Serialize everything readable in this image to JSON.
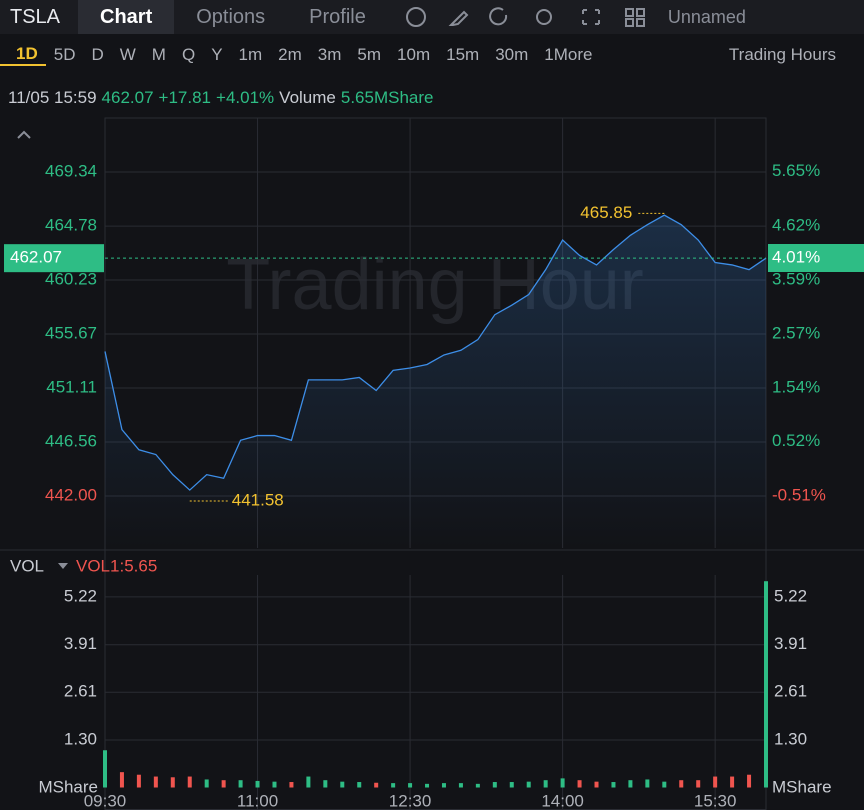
{
  "toolbar": {
    "symbol": "TSLA",
    "tabs": [
      "Chart",
      "Options",
      "Profile"
    ],
    "layout_name": "Unnamed"
  },
  "periods": {
    "items": [
      "1D",
      "5D",
      "D",
      "W",
      "M",
      "Q",
      "Y",
      "1m",
      "2m",
      "3m",
      "5m",
      "10m",
      "15m",
      "30m",
      "1More"
    ],
    "session": "Trading Hours"
  },
  "quote": {
    "time": "11/05 15:59",
    "price": "462.07",
    "change": "+17.81",
    "change_pct": "+4.01%",
    "volume_label": "Volume",
    "volume": "5.65MShare"
  },
  "chart_data": [
    {
      "type": "line",
      "watermark": "Trading Hour",
      "color": "#3d8ee8",
      "up_color": "#2ebd85",
      "down_color": "#f0554f",
      "annotation_color": "#f2c230",
      "categories": [
        "09:30",
        "09:40",
        "09:50",
        "10:00",
        "10:10",
        "10:20",
        "10:30",
        "10:40",
        "10:50",
        "11:00",
        "11:10",
        "11:20",
        "11:30",
        "11:40",
        "11:50",
        "12:00",
        "12:10",
        "12:20",
        "12:30",
        "12:40",
        "12:50",
        "13:00",
        "13:10",
        "13:20",
        "13:30",
        "13:40",
        "13:50",
        "14:00",
        "14:10",
        "14:20",
        "14:30",
        "14:40",
        "14:50",
        "15:00",
        "15:10",
        "15:20",
        "15:30",
        "15:40",
        "15:50",
        "15:59"
      ],
      "values": [
        454.2,
        447.6,
        445.9,
        445.5,
        443.8,
        442.5,
        443.8,
        443.5,
        446.7,
        447.1,
        447.1,
        446.7,
        451.8,
        451.8,
        451.8,
        452.0,
        450.9,
        452.6,
        452.8,
        453.1,
        453.9,
        454.3,
        455.2,
        457.3,
        458.1,
        459.0,
        461.1,
        463.6,
        462.3,
        461.5,
        462.8,
        464.0,
        464.9,
        465.7,
        464.9,
        463.6,
        461.7,
        461.5,
        461.1,
        462.07
      ],
      "xticks": [
        "09:30",
        "11:00",
        "12:30",
        "14:00",
        "15:30"
      ],
      "ylim": [
        437.61,
        473.9
      ],
      "yticks": [
        469.34,
        464.78,
        460.23,
        455.67,
        451.11,
        446.56,
        {
          "value": 442,
          "label": "442.00"
        }
      ],
      "y2lim": [
        -1.5,
        6.67
      ],
      "y2ticks": [
        {
          "value": 5.65,
          "label": "5.65%"
        },
        {
          "value": 4.62,
          "label": "4.62%"
        },
        {
          "value": 3.59,
          "label": "3.59%"
        },
        {
          "value": 2.57,
          "label": "2.57%"
        },
        {
          "value": 1.54,
          "label": "1.54%"
        },
        {
          "value": 0.52,
          "label": "0.52%"
        },
        {
          "value": -0.51,
          "label": "-0.51%"
        }
      ],
      "last": 462.07,
      "change": 17.81,
      "last_pct": {
        "value": 4.01,
        "label": "4.01%"
      },
      "annotations": [
        {
          "x": "15:00",
          "value": 465.85
        },
        {
          "x": "10:20",
          "value": 441.58
        }
      ],
      "grid": true
    },
    {
      "type": "bar",
      "indicator": "VOL",
      "indicator_value": "VOL1:5.65",
      "unit": "MShare",
      "values": [
        1.02,
        0.42,
        0.35,
        0.3,
        0.28,
        0.3,
        0.22,
        0.2,
        0.2,
        0.18,
        0.16,
        0.15,
        0.3,
        0.2,
        0.16,
        0.15,
        0.13,
        0.12,
        0.12,
        0.1,
        0.12,
        0.12,
        0.1,
        0.15,
        0.15,
        0.16,
        0.2,
        0.25,
        0.2,
        0.16,
        0.15,
        0.2,
        0.22,
        0.16,
        0.2,
        0.2,
        0.3,
        0.3,
        0.35,
        5.65
      ],
      "ylim": [
        0,
        5.82
      ],
      "yticks": [
        {
          "value": 1.3,
          "label": "1.30"
        },
        2.61,
        3.91,
        5.22
      ],
      "grid": true
    }
  ]
}
